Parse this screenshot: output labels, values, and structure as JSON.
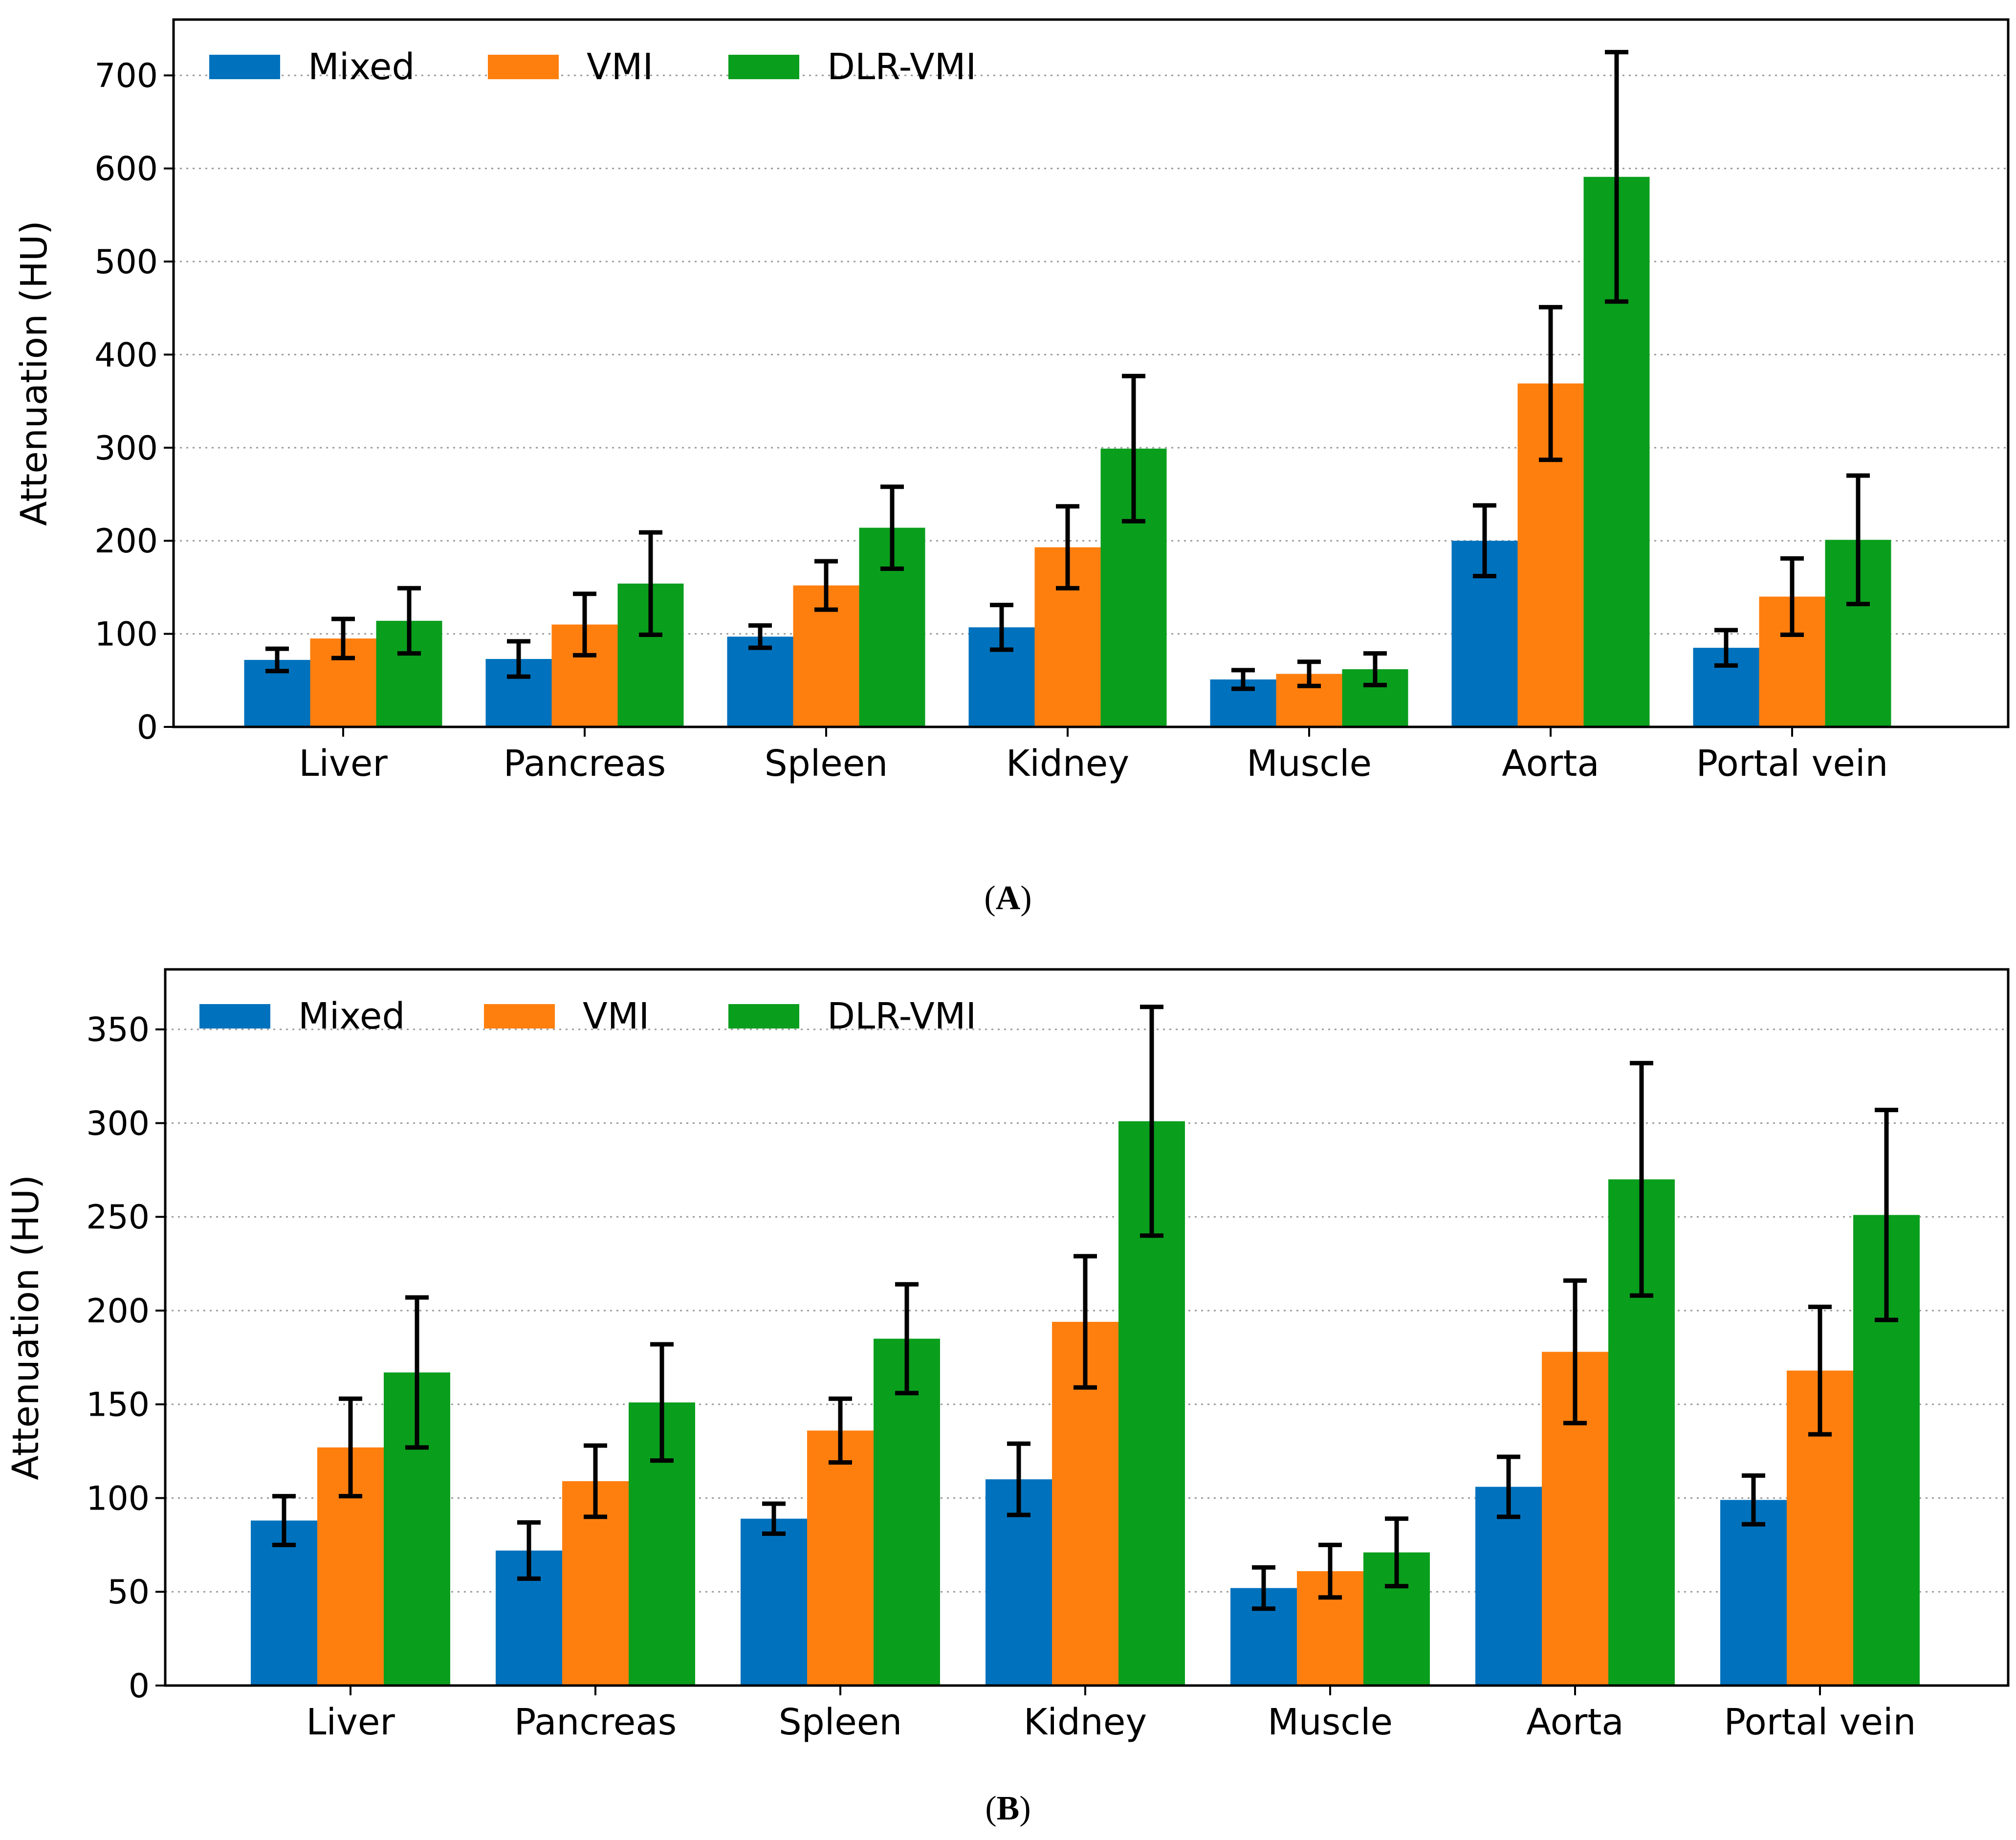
{
  "colors": {
    "Mixed": "#0072bd",
    "VMI": "#ff7f0e",
    "DLR-VMI": "#0a9e1d",
    "error_bar": "#000000",
    "grid": "#9a9a9a"
  },
  "chart_data": [
    {
      "type": "bar",
      "panel_label": "A",
      "ylabel": "Attenuation (HU)",
      "ylim": [
        0,
        760
      ],
      "yticks": [
        0,
        100,
        200,
        300,
        400,
        500,
        600,
        700
      ],
      "grid": "horizontal dotted",
      "legend_position": "top-left",
      "categories": [
        "Liver",
        "Pancreas",
        "Spleen",
        "Kidney",
        "Muscle",
        "Aorta",
        "Portal vein"
      ],
      "series": [
        {
          "name": "Mixed",
          "values": [
            72,
            73,
            97,
            107,
            51,
            200,
            85
          ],
          "errors": [
            12,
            19,
            12,
            24,
            10,
            38,
            19
          ]
        },
        {
          "name": "VMI",
          "values": [
            95,
            110,
            152,
            193,
            57,
            369,
            140
          ],
          "errors": [
            21,
            33,
            26,
            44,
            13,
            82,
            41
          ]
        },
        {
          "name": "DLR-VMI",
          "values": [
            114,
            154,
            214,
            299,
            62,
            591,
            201
          ],
          "errors": [
            35,
            55,
            44,
            78,
            17,
            134,
            69
          ]
        }
      ]
    },
    {
      "type": "bar",
      "panel_label": "B",
      "ylabel": "Attenuation (HU)",
      "ylim": [
        0,
        382
      ],
      "yticks": [
        0,
        50,
        100,
        150,
        200,
        250,
        300,
        350
      ],
      "grid": "horizontal dotted",
      "legend_position": "top-left",
      "categories": [
        "Liver",
        "Pancreas",
        "Spleen",
        "Kidney",
        "Muscle",
        "Aorta",
        "Portal vein"
      ],
      "series": [
        {
          "name": "Mixed",
          "values": [
            88,
            72,
            89,
            110,
            52,
            106,
            99
          ],
          "errors": [
            13,
            15,
            8,
            19,
            11,
            16,
            13
          ]
        },
        {
          "name": "VMI",
          "values": [
            127,
            109,
            136,
            194,
            61,
            178,
            168
          ],
          "errors": [
            26,
            19,
            17,
            35,
            14,
            38,
            34
          ]
        },
        {
          "name": "DLR-VMI",
          "values": [
            167,
            151,
            185,
            301,
            71,
            270,
            251
          ],
          "errors": [
            40,
            31,
            29,
            61,
            18,
            62,
            56
          ]
        }
      ]
    }
  ]
}
